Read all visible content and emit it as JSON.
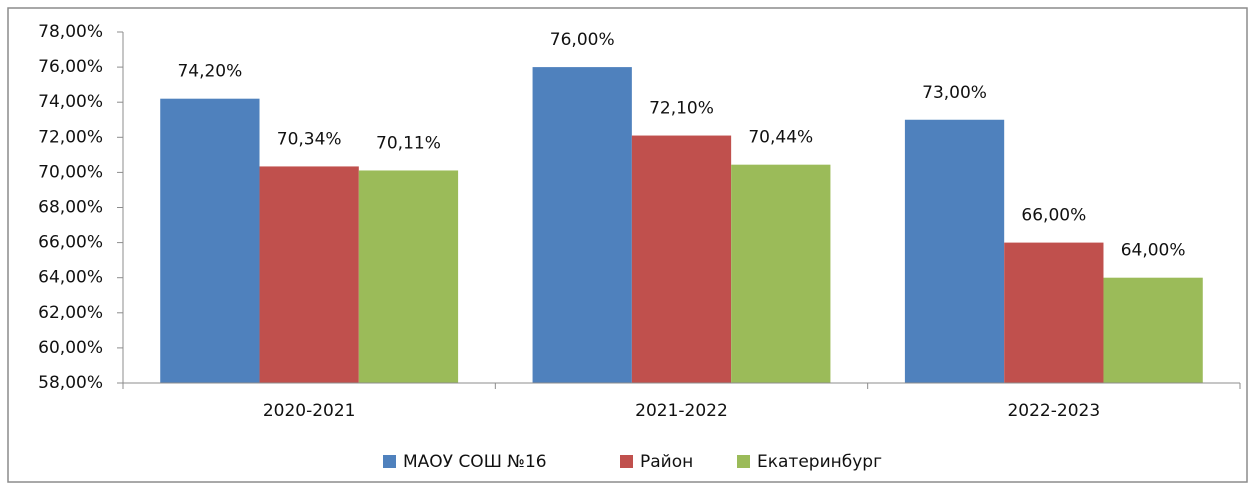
{
  "chart_data": {
    "type": "bar",
    "categories": [
      "2020-2021",
      "2021-2022",
      "2022-2023"
    ],
    "series": [
      {
        "name": "МАОУ СОШ №16",
        "color": "#4f81bd",
        "values": [
          74.2,
          76,
          73
        ],
        "value_labels": [
          "74,20%",
          "76,00%",
          "73,00%"
        ]
      },
      {
        "name": "Район",
        "color": "#c0504d",
        "values": [
          70.34,
          72.1,
          66
        ],
        "value_labels": [
          "70,34%",
          "72,10%",
          "66,00%"
        ]
      },
      {
        "name": "Екатеринбург",
        "color": "#9bbb59",
        "values": [
          70.11,
          70.44,
          64
        ],
        "value_labels": [
          "70,11%",
          "70,44%",
          "64,00%"
        ]
      }
    ],
    "ylim": [
      58,
      78
    ],
    "yticks": [
      {
        "value": 58,
        "label": "58,00%"
      },
      {
        "value": 60,
        "label": "60,00%"
      },
      {
        "value": 62,
        "label": "62,00%"
      },
      {
        "value": 64,
        "label": "64,00%"
      },
      {
        "value": 66,
        "label": "66,00%"
      },
      {
        "value": 68,
        "label": "68,00%"
      },
      {
        "value": 70,
        "label": "70,00%"
      },
      {
        "value": 72,
        "label": "72,00%"
      },
      {
        "value": 74,
        "label": "74,00%"
      },
      {
        "value": 76,
        "label": "76,00%"
      },
      {
        "value": 78,
        "label": "78,00%"
      }
    ],
    "grid": false,
    "legend": "bottom"
  }
}
